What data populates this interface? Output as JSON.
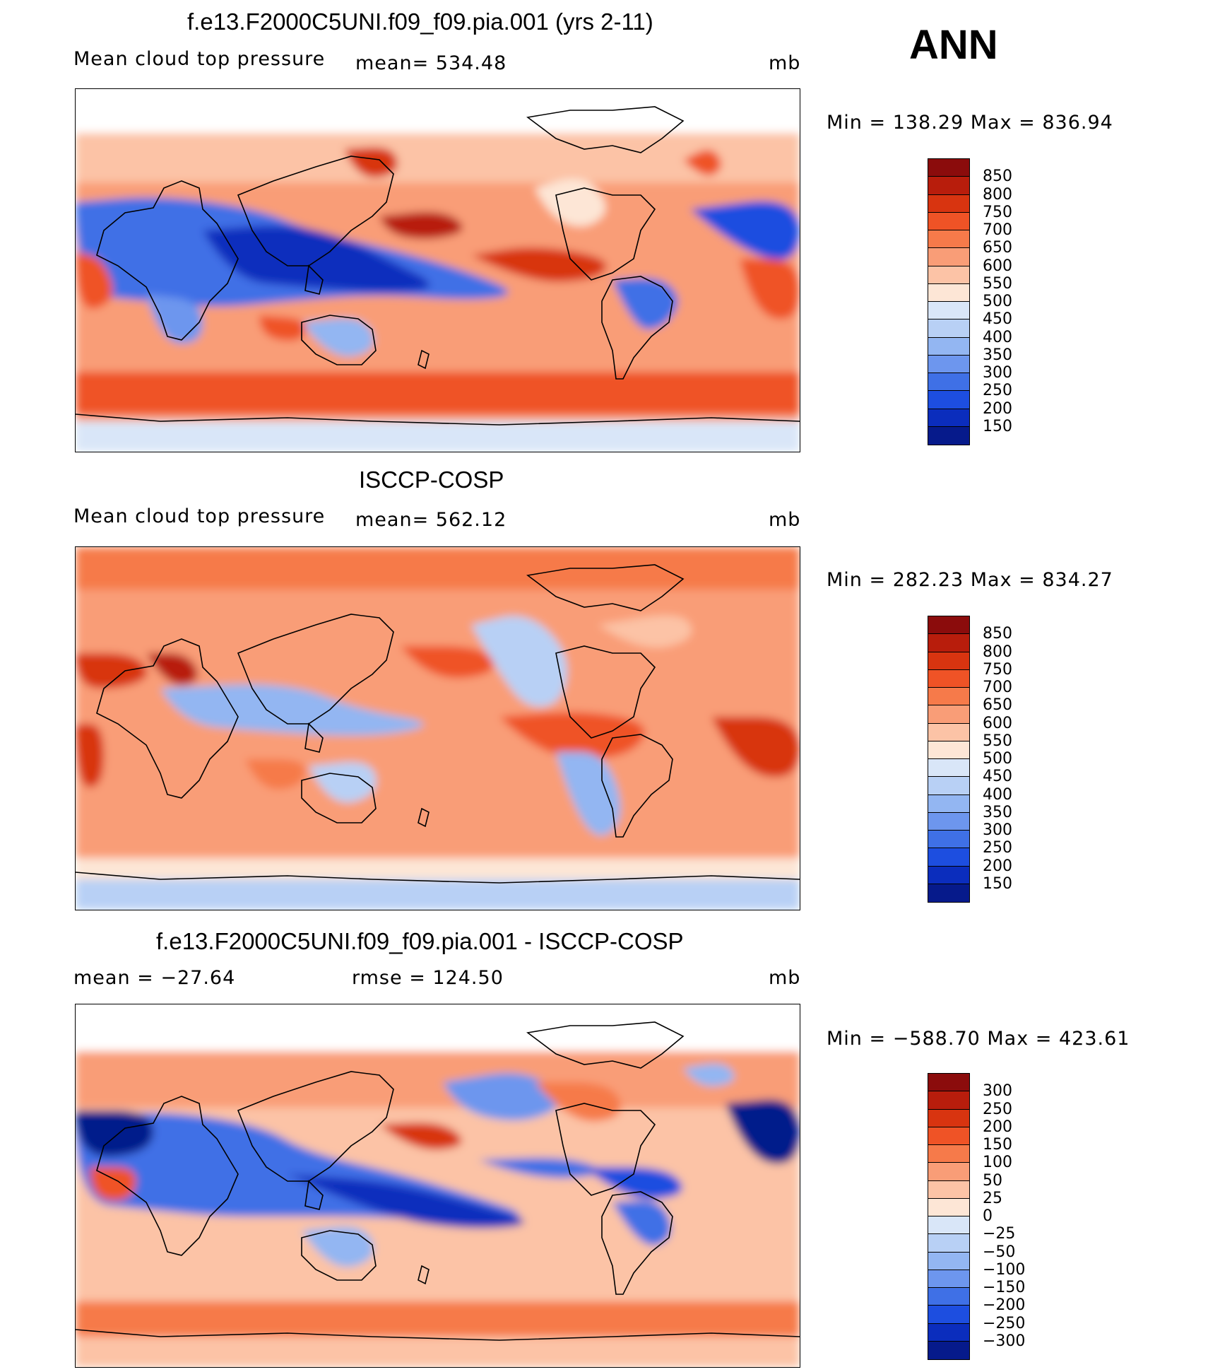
{
  "season": "ANN",
  "chart_data": [
    {
      "type": "heatmap",
      "title": "f.e13.F2000C5UNI.f09_f09.pia.001 (yrs 2-11)",
      "left_label": "Mean cloud top pressure",
      "center_label": "mean= 534.48",
      "mean": 534.48,
      "units": "mb",
      "min_max_text": "Min = 138.29 Max = 836.94",
      "min": 138.29,
      "max": 836.94,
      "levels": [
        "850",
        "800",
        "750",
        "700",
        "650",
        "600",
        "550",
        "500",
        "450",
        "400",
        "350",
        "300",
        "250",
        "200",
        "150"
      ],
      "colors": [
        "#8b0c0c",
        "#b81d0c",
        "#d83410",
        "#ef5326",
        "#f67a4a",
        "#f99d77",
        "#fcc3a6",
        "#fde6d6",
        "#d9e6f8",
        "#b8d0f5",
        "#93b6f2",
        "#6d96ee",
        "#3f70e6",
        "#1d4ee0",
        "#0b2dbd",
        "#061a8b"
      ]
    },
    {
      "type": "heatmap",
      "title": "ISCCP-COSP",
      "left_label": "Mean cloud top pressure",
      "center_label": "mean= 562.12",
      "mean": 562.12,
      "units": "mb",
      "min_max_text": "Min = 282.23 Max = 834.27",
      "min": 282.23,
      "max": 834.27,
      "levels": [
        "850",
        "800",
        "750",
        "700",
        "650",
        "600",
        "550",
        "500",
        "450",
        "400",
        "350",
        "300",
        "250",
        "200",
        "150"
      ],
      "colors": [
        "#8b0c0c",
        "#b81d0c",
        "#d83410",
        "#ef5326",
        "#f67a4a",
        "#f99d77",
        "#fcc3a6",
        "#fde6d6",
        "#d9e6f8",
        "#b8d0f5",
        "#93b6f2",
        "#6d96ee",
        "#3f70e6",
        "#1d4ee0",
        "#0b2dbd",
        "#061a8b"
      ]
    },
    {
      "type": "heatmap",
      "title": "f.e13.F2000C5UNI.f09_f09.pia.001 - ISCCP-COSP",
      "left_label": "mean = −27.64",
      "center_label": "rmse = 124.50",
      "mean": -27.64,
      "rmse": 124.5,
      "units": "mb",
      "min_max_text": "Min = −588.70 Max = 423.61",
      "min": -588.7,
      "max": 423.61,
      "levels": [
        "300",
        "250",
        "200",
        "150",
        "100",
        "50",
        "25",
        "0",
        "−25",
        "−50",
        "−100",
        "−150",
        "−200",
        "−250",
        "−300"
      ],
      "colors": [
        "#8b0c0c",
        "#b81d0c",
        "#d83410",
        "#ef5326",
        "#f67a4a",
        "#f99d77",
        "#fcc3a6",
        "#fde6d6",
        "#d9e6f8",
        "#b8d0f5",
        "#93b6f2",
        "#6d96ee",
        "#3f70e6",
        "#1d4ee0",
        "#0b2dbd",
        "#061a8b"
      ]
    }
  ]
}
